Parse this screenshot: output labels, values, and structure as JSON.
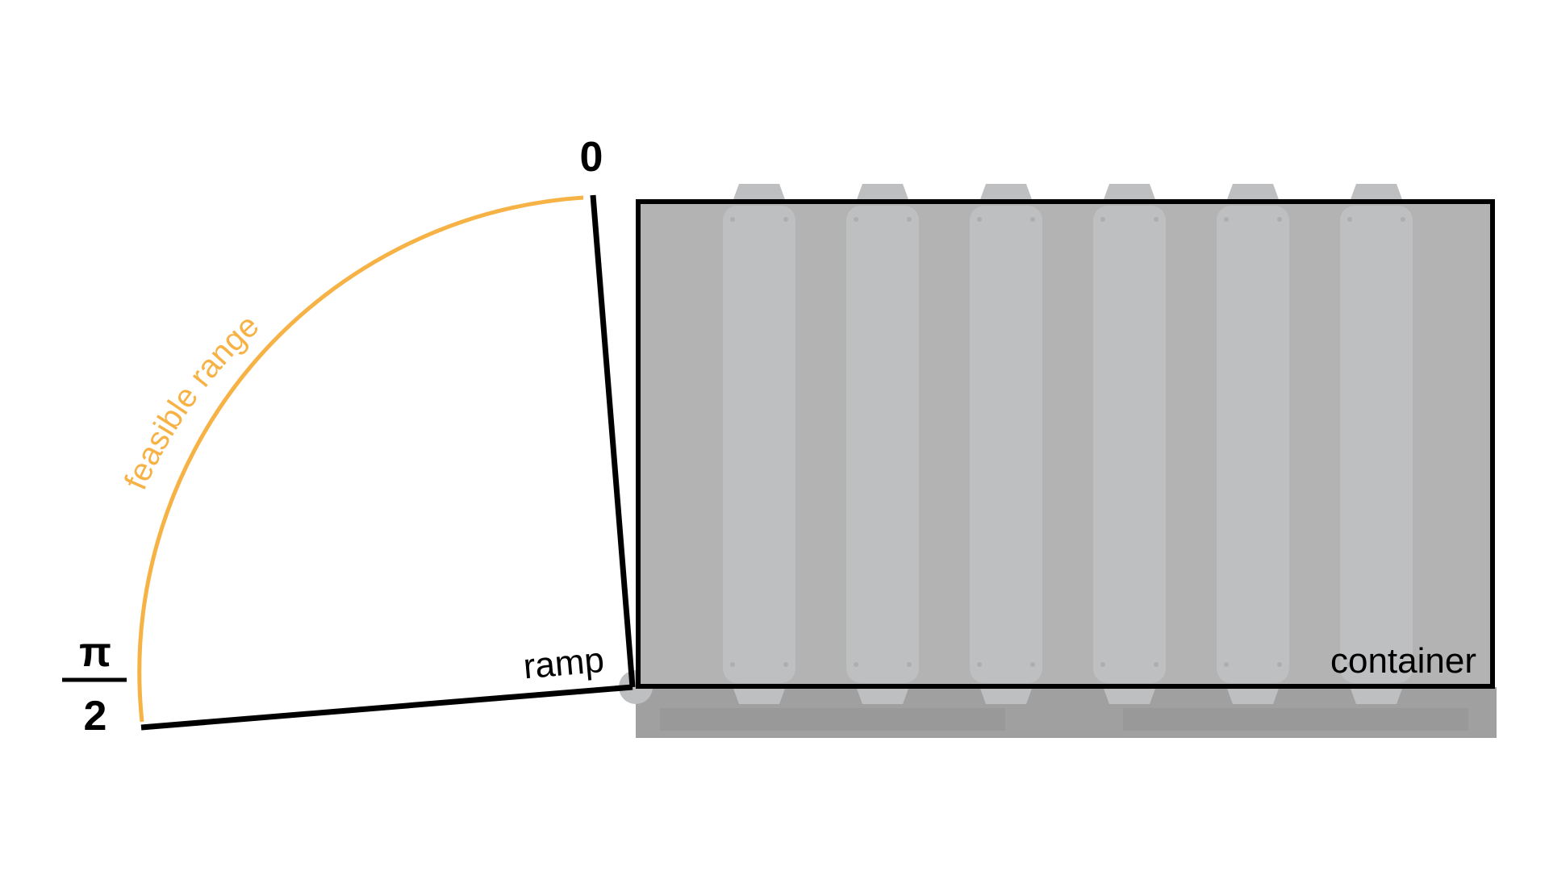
{
  "labels": {
    "zero": "0",
    "pi_numerator": "π",
    "pi_denominator": "2",
    "arc": "feasible range",
    "ramp": "ramp",
    "container": "container"
  },
  "colors": {
    "arc": "#F7B245",
    "outline": "#000000",
    "container_body": "#B3B3B4",
    "container_ribs": "#BEBFC1",
    "trailer": "#A0A0A0",
    "trailer_inset": "#999999"
  },
  "icons": {
    "container": "shipping-container-icon",
    "trailer": "trailer-base-icon"
  }
}
